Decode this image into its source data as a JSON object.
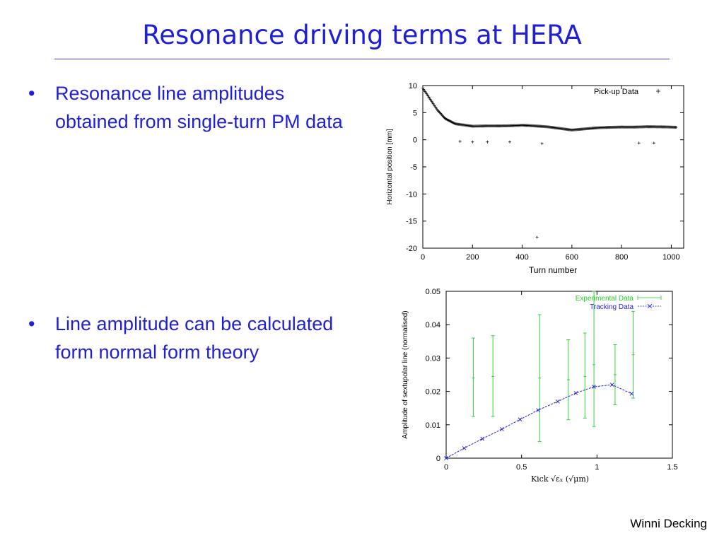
{
  "slide": {
    "title": "Resonance driving terms at HERA",
    "bullets": [
      "Resonance line amplitudes obtained from single-turn PM data",
      "Line amplitude can be calculated form normal form theory"
    ],
    "bullet_char": "•",
    "footer": "Winni Decking"
  },
  "chart_data": [
    {
      "type": "scatter",
      "title": "",
      "xlabel": "Turn number",
      "ylabel": "Horizontal position [mm]",
      "xlim": [
        0,
        1050
      ],
      "ylim": [
        -20,
        10
      ],
      "xticks": [
        0,
        200,
        400,
        600,
        800,
        1000
      ],
      "yticks": [
        10,
        5,
        0,
        -5,
        -10,
        -15,
        -20
      ],
      "grid": false,
      "legend_position": "top-right",
      "series": [
        {
          "name": "Pick-up Data",
          "marker": "plus",
          "color": "#000000",
          "envelope_upper": [
            [
              0,
              9.5
            ],
            [
              30,
              7.5
            ],
            [
              60,
              5.5
            ],
            [
              90,
              4.0
            ],
            [
              130,
              3.0
            ],
            [
              200,
              2.5
            ],
            [
              300,
              2.6
            ],
            [
              400,
              2.8
            ],
            [
              500,
              2.4
            ],
            [
              600,
              1.8
            ],
            [
              700,
              2.2
            ],
            [
              800,
              2.5
            ],
            [
              900,
              2.6
            ],
            [
              1024,
              2.3
            ]
          ],
          "envelope_lower": [
            [
              0,
              -3.5
            ],
            [
              30,
              -2.0
            ],
            [
              60,
              -0.8
            ],
            [
              90,
              0.0
            ],
            [
              130,
              0.6
            ],
            [
              200,
              0.9
            ],
            [
              300,
              0.8
            ],
            [
              400,
              0.6
            ],
            [
              500,
              1.0
            ],
            [
              600,
              1.3
            ],
            [
              700,
              1.0
            ],
            [
              800,
              0.8
            ],
            [
              900,
              0.6
            ],
            [
              1024,
              0.7
            ]
          ],
          "outliers": [
            [
              150,
              -0.3
            ],
            [
              200,
              -0.4
            ],
            [
              260,
              -0.4
            ],
            [
              350,
              -0.4
            ],
            [
              480,
              -0.7
            ],
            [
              460,
              -18.0
            ],
            [
              870,
              -0.6
            ],
            [
              930,
              -0.6
            ]
          ]
        }
      ]
    },
    {
      "type": "line",
      "title": "",
      "xlabel": "Kick √εₓ (√μm)",
      "ylabel": "Amplitude of sextupolar line (normalised)",
      "xlim": [
        0,
        1.5
      ],
      "ylim": [
        0,
        0.05
      ],
      "xticks": [
        0,
        0.5,
        1,
        1.5
      ],
      "yticks": [
        0.05,
        0.04,
        0.03,
        0.02,
        0.01,
        0
      ],
      "grid": false,
      "legend_position": "top-right",
      "series": [
        {
          "name": "Experimental Data",
          "color": "#22cc22",
          "errorbars": [
            {
              "x": 0.18,
              "y": 0.024,
              "low": 0.0125,
              "high": 0.036
            },
            {
              "x": 0.31,
              "y": 0.0245,
              "low": 0.0125,
              "high": 0.0367
            },
            {
              "x": 0.62,
              "y": 0.024,
              "low": 0.005,
              "high": 0.043
            },
            {
              "x": 0.81,
              "y": 0.0235,
              "low": 0.0115,
              "high": 0.0355
            },
            {
              "x": 0.92,
              "y": 0.0245,
              "low": 0.012,
              "high": 0.0375
            },
            {
              "x": 0.98,
              "y": 0.028,
              "low": 0.0095,
              "high": 0.05
            },
            {
              "x": 1.12,
              "y": 0.025,
              "low": 0.016,
              "high": 0.034
            },
            {
              "x": 1.24,
              "y": 0.031,
              "low": 0.018,
              "high": 0.044
            }
          ]
        },
        {
          "name": "Tracking Data",
          "color": "#1f1fd6",
          "x": [
            0,
            0.12,
            0.24,
            0.37,
            0.49,
            0.61,
            0.74,
            0.86,
            0.98,
            1.1,
            1.23
          ],
          "y": [
            0,
            0.003,
            0.0058,
            0.0087,
            0.0116,
            0.0144,
            0.017,
            0.0195,
            0.0214,
            0.022,
            0.0193
          ]
        }
      ]
    }
  ]
}
